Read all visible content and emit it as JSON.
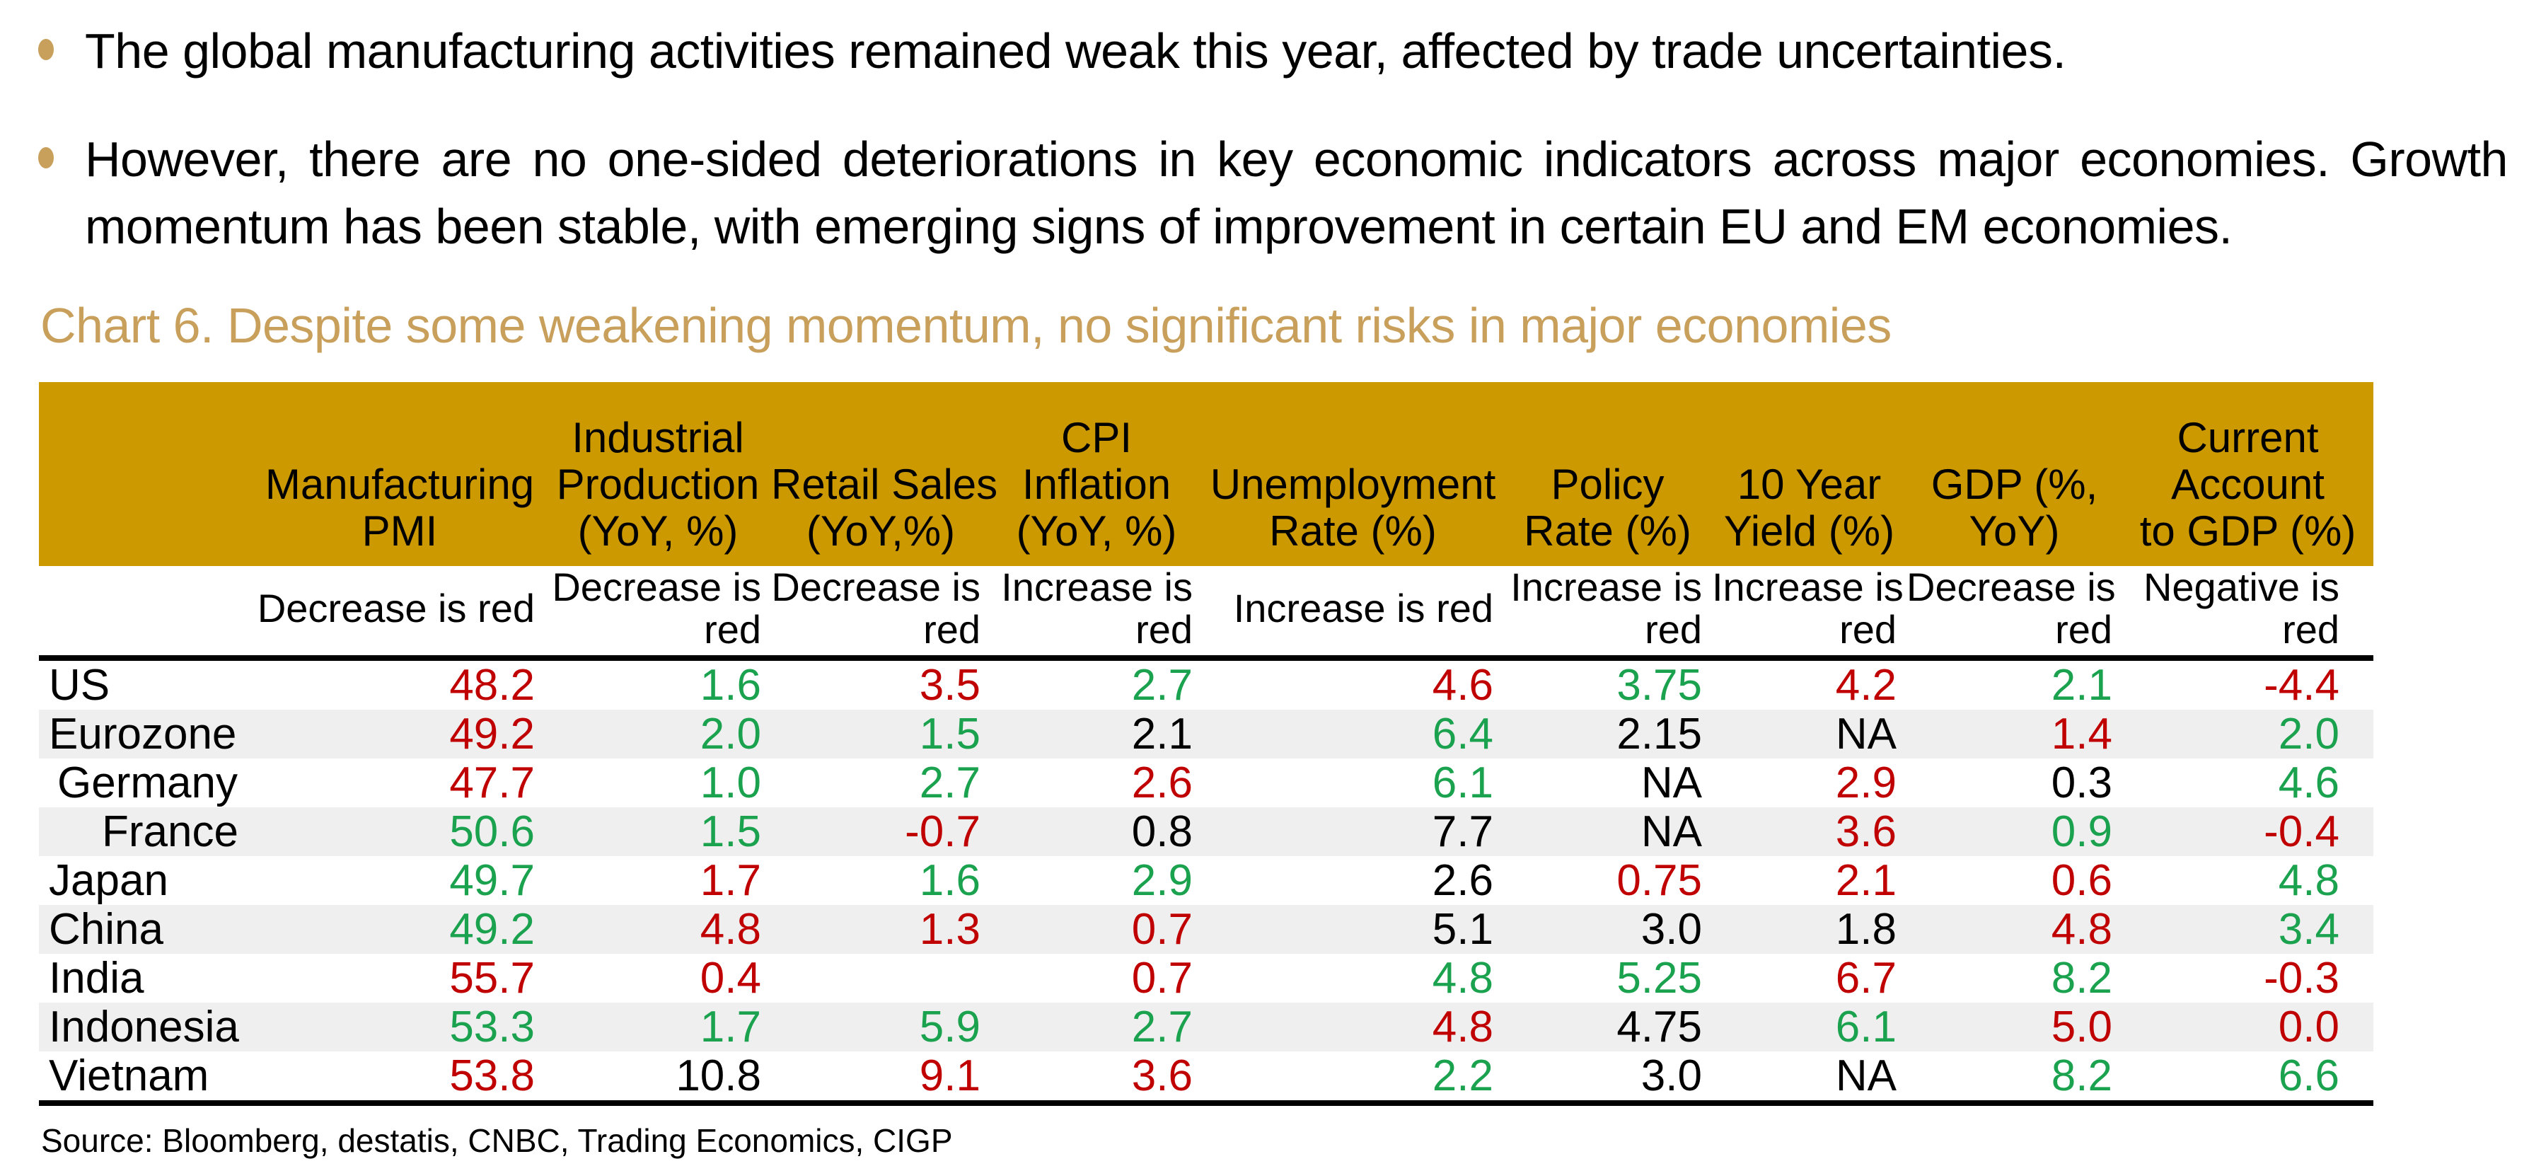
{
  "bullets": [
    {
      "text": "The global manufacturing activities remained weak this year, affected by trade uncertainties."
    },
    {
      "text": "However, there are no one-sided deteriorations in key economic indicators across major economies. Growth momentum has been stable, with emerging signs of improvement in certain EU and EM economies."
    }
  ],
  "chart_title": "Chart 6. Despite some weakening momentum, no significant risks in major economies",
  "source": "Source: Bloomberg, destatis, CNBC, Trading Economics, CIGP",
  "colors": {
    "red": "#C00000",
    "green": "#1BA24F",
    "black": "#000000",
    "header_bg": "#CC9A00",
    "accent": "#C8A05C",
    "stripe": "#EFEFEF"
  },
  "table": {
    "columns": [
      {
        "label": "",
        "sub": ""
      },
      {
        "label": "Manufacturing\nPMI",
        "sub": "Decrease is red"
      },
      {
        "label": "Industrial\nProduction\n(YoY, %)",
        "sub": "Decrease is\nred"
      },
      {
        "label": "Retail Sales\n(YoY,%)",
        "sub": "Decrease is\nred"
      },
      {
        "label": "CPI\nInflation\n(YoY, %)",
        "sub": "Increase is\nred"
      },
      {
        "label": "Unemployment\nRate (%)",
        "sub": "Increase is red"
      },
      {
        "label": "Policy\nRate (%)",
        "sub": "Increase is\nred"
      },
      {
        "label": "10 Year\nYield (%)",
        "sub": "Increase is\nred"
      },
      {
        "label": "GDP (%,\nYoY)",
        "sub": "Decrease is\nred"
      },
      {
        "label": "Current\nAccount\nto GDP (%)",
        "sub": "Negative is\nred"
      }
    ],
    "rows": [
      {
        "country": "US",
        "indent": 0,
        "cells": [
          {
            "v": "48.2",
            "c": "red"
          },
          {
            "v": "1.6",
            "c": "green"
          },
          {
            "v": "3.5",
            "c": "red"
          },
          {
            "v": "2.7",
            "c": "green"
          },
          {
            "v": "4.6",
            "c": "red"
          },
          {
            "v": "3.75",
            "c": "green"
          },
          {
            "v": "4.2",
            "c": "red"
          },
          {
            "v": "2.1",
            "c": "green"
          },
          {
            "v": "-4.4",
            "c": "red"
          }
        ]
      },
      {
        "country": "Eurozone",
        "indent": 0,
        "cells": [
          {
            "v": "49.2",
            "c": "red"
          },
          {
            "v": "2.0",
            "c": "green"
          },
          {
            "v": "1.5",
            "c": "green"
          },
          {
            "v": "2.1",
            "c": "black"
          },
          {
            "v": "6.4",
            "c": "green"
          },
          {
            "v": "2.15",
            "c": "black"
          },
          {
            "v": "NA",
            "c": "black"
          },
          {
            "v": "1.4",
            "c": "red"
          },
          {
            "v": "2.0",
            "c": "green"
          }
        ]
      },
      {
        "country": "Germany",
        "indent": 1,
        "cells": [
          {
            "v": "47.7",
            "c": "red"
          },
          {
            "v": "1.0",
            "c": "green"
          },
          {
            "v": "2.7",
            "c": "green"
          },
          {
            "v": "2.6",
            "c": "red"
          },
          {
            "v": "6.1",
            "c": "green"
          },
          {
            "v": "NA",
            "c": "black"
          },
          {
            "v": "2.9",
            "c": "red"
          },
          {
            "v": "0.3",
            "c": "black"
          },
          {
            "v": "4.6",
            "c": "green"
          }
        ]
      },
      {
        "country": "France",
        "indent": 2,
        "cells": [
          {
            "v": "50.6",
            "c": "green"
          },
          {
            "v": "1.5",
            "c": "green"
          },
          {
            "v": "-0.7",
            "c": "red"
          },
          {
            "v": "0.8",
            "c": "black"
          },
          {
            "v": "7.7",
            "c": "black"
          },
          {
            "v": "NA",
            "c": "black"
          },
          {
            "v": "3.6",
            "c": "red"
          },
          {
            "v": "0.9",
            "c": "green"
          },
          {
            "v": "-0.4",
            "c": "red"
          }
        ]
      },
      {
        "country": "Japan",
        "indent": 0,
        "cells": [
          {
            "v": "49.7",
            "c": "green"
          },
          {
            "v": "1.7",
            "c": "red"
          },
          {
            "v": "1.6",
            "c": "green"
          },
          {
            "v": "2.9",
            "c": "green"
          },
          {
            "v": "2.6",
            "c": "black"
          },
          {
            "v": "0.75",
            "c": "red"
          },
          {
            "v": "2.1",
            "c": "red"
          },
          {
            "v": "0.6",
            "c": "red"
          },
          {
            "v": "4.8",
            "c": "green"
          }
        ]
      },
      {
        "country": "China",
        "indent": 0,
        "cells": [
          {
            "v": "49.2",
            "c": "green"
          },
          {
            "v": "4.8",
            "c": "red"
          },
          {
            "v": "1.3",
            "c": "red"
          },
          {
            "v": "0.7",
            "c": "red"
          },
          {
            "v": "5.1",
            "c": "black"
          },
          {
            "v": "3.0",
            "c": "black"
          },
          {
            "v": "1.8",
            "c": "black"
          },
          {
            "v": "4.8",
            "c": "red"
          },
          {
            "v": "3.4",
            "c": "green"
          }
        ]
      },
      {
        "country": "India",
        "indent": 0,
        "cells": [
          {
            "v": "55.7",
            "c": "red"
          },
          {
            "v": "0.4",
            "c": "red"
          },
          {
            "v": "",
            "c": "black"
          },
          {
            "v": "0.7",
            "c": "red"
          },
          {
            "v": "4.8",
            "c": "green"
          },
          {
            "v": "5.25",
            "c": "green"
          },
          {
            "v": "6.7",
            "c": "red"
          },
          {
            "v": "8.2",
            "c": "green"
          },
          {
            "v": "-0.3",
            "c": "red"
          }
        ]
      },
      {
        "country": "Indonesia",
        "indent": 0,
        "cells": [
          {
            "v": "53.3",
            "c": "green"
          },
          {
            "v": "1.7",
            "c": "green"
          },
          {
            "v": "5.9",
            "c": "green"
          },
          {
            "v": "2.7",
            "c": "green"
          },
          {
            "v": "4.8",
            "c": "red"
          },
          {
            "v": "4.75",
            "c": "black"
          },
          {
            "v": "6.1",
            "c": "green"
          },
          {
            "v": "5.0",
            "c": "red"
          },
          {
            "v": "0.0",
            "c": "red"
          }
        ]
      },
      {
        "country": "Vietnam",
        "indent": 0,
        "cells": [
          {
            "v": "53.8",
            "c": "red"
          },
          {
            "v": "10.8",
            "c": "black"
          },
          {
            "v": "9.1",
            "c": "red"
          },
          {
            "v": "3.6",
            "c": "red"
          },
          {
            "v": "2.2",
            "c": "green"
          },
          {
            "v": "3.0",
            "c": "black"
          },
          {
            "v": "NA",
            "c": "black"
          },
          {
            "v": "8.2",
            "c": "green"
          },
          {
            "v": "6.6",
            "c": "green"
          }
        ]
      }
    ]
  }
}
